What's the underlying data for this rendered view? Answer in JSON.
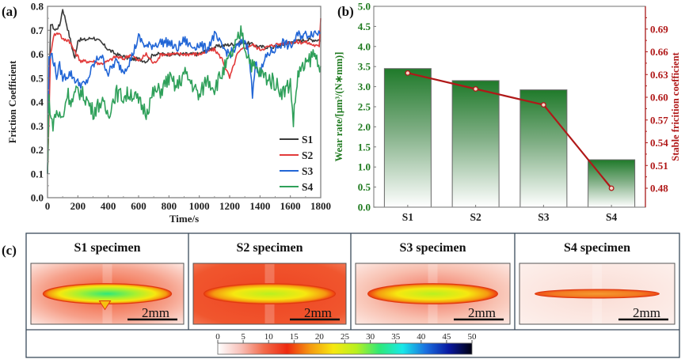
{
  "panel_labels": {
    "a": "(a)",
    "b": "(b)",
    "c": "(c)"
  },
  "colors": {
    "S1": "#3a3a3a",
    "S2": "#e23a3a",
    "S3": "#2266d6",
    "S4": "#2fa05a",
    "bar_top": "#1f7a2a",
    "line_red": "#b01818",
    "axis_green": "#1f7a1f",
    "axis_red": "#b01818"
  },
  "chart_data": [
    {
      "id": "a",
      "type": "line",
      "title": "",
      "xlabel": "Time/s",
      "ylabel": "Friction Coefficient",
      "xlim": [
        0,
        1800
      ],
      "ylim": [
        0.0,
        0.8
      ],
      "xticks": [
        0,
        200,
        400,
        600,
        800,
        1000,
        1200,
        1400,
        1600,
        1800
      ],
      "yticks": [
        "0.0",
        "0.1",
        "0.2",
        "0.3",
        "0.4",
        "0.5",
        "0.6",
        "0.7",
        "0.8"
      ],
      "legend": {
        "position": "bottom-right",
        "entries": [
          "S1",
          "S2",
          "S3",
          "S4"
        ]
      },
      "series": [
        {
          "name": "S1",
          "x": [
            0,
            20,
            50,
            80,
            100,
            120,
            150,
            180,
            200,
            250,
            300,
            350,
            400,
            450,
            500,
            550,
            600,
            650,
            700,
            800,
            900,
            1000,
            1100,
            1200,
            1300,
            1400,
            1500,
            1600,
            1700,
            1800
          ],
          "y": [
            0.1,
            0.73,
            0.7,
            0.72,
            0.79,
            0.74,
            0.66,
            0.58,
            0.66,
            0.66,
            0.67,
            0.65,
            0.62,
            0.6,
            0.59,
            0.58,
            0.58,
            0.57,
            0.6,
            0.6,
            0.6,
            0.6,
            0.63,
            0.64,
            0.65,
            0.63,
            0.63,
            0.65,
            0.66,
            0.66
          ]
        },
        {
          "name": "S2",
          "x": [
            0,
            20,
            40,
            80,
            100,
            140,
            180,
            220,
            260,
            300,
            350,
            400,
            450,
            500,
            550,
            600,
            650,
            700,
            750,
            800,
            900,
            1000,
            1100,
            1150,
            1200,
            1250,
            1300,
            1350,
            1400,
            1500,
            1600,
            1700,
            1790,
            1800
          ],
          "y": [
            0.1,
            0.6,
            0.68,
            0.69,
            0.66,
            0.66,
            0.61,
            0.57,
            0.57,
            0.57,
            0.56,
            0.57,
            0.59,
            0.58,
            0.6,
            0.57,
            0.6,
            0.56,
            0.6,
            0.6,
            0.6,
            0.6,
            0.62,
            0.58,
            0.5,
            0.6,
            0.63,
            0.64,
            0.62,
            0.64,
            0.65,
            0.65,
            0.63,
            0.75
          ]
        },
        {
          "name": "S3",
          "x": [
            0,
            10,
            30,
            60,
            80,
            100,
            150,
            200,
            250,
            300,
            350,
            400,
            450,
            500,
            550,
            600,
            650,
            700,
            750,
            800,
            850,
            900,
            950,
            1000,
            1050,
            1100,
            1150,
            1200,
            1250,
            1300,
            1330,
            1350,
            1370,
            1400,
            1450,
            1500,
            1550,
            1600,
            1650,
            1700,
            1750,
            1800
          ],
          "y": [
            0.1,
            0.58,
            0.6,
            0.51,
            0.55,
            0.5,
            0.52,
            0.48,
            0.47,
            0.55,
            0.6,
            0.52,
            0.57,
            0.53,
            0.58,
            0.67,
            0.63,
            0.64,
            0.65,
            0.65,
            0.62,
            0.66,
            0.63,
            0.64,
            0.62,
            0.68,
            0.63,
            0.6,
            0.63,
            0.66,
            0.6,
            0.42,
            0.56,
            0.52,
            0.6,
            0.62,
            0.65,
            0.63,
            0.68,
            0.68,
            0.69,
            0.69
          ]
        },
        {
          "name": "S4",
          "x": [
            0,
            10,
            30,
            60,
            80,
            100,
            130,
            160,
            200,
            250,
            300,
            350,
            400,
            450,
            500,
            550,
            600,
            650,
            700,
            750,
            800,
            850,
            900,
            950,
            1000,
            1050,
            1100,
            1150,
            1200,
            1250,
            1280,
            1300,
            1350,
            1400,
            1450,
            1500,
            1550,
            1600,
            1620,
            1650,
            1700,
            1750,
            1780,
            1800
          ],
          "y": [
            0.1,
            0.42,
            0.3,
            0.36,
            0.34,
            0.33,
            0.44,
            0.4,
            0.45,
            0.42,
            0.36,
            0.4,
            0.35,
            0.44,
            0.42,
            0.44,
            0.4,
            0.36,
            0.44,
            0.45,
            0.5,
            0.46,
            0.52,
            0.48,
            0.42,
            0.5,
            0.46,
            0.52,
            0.58,
            0.65,
            0.7,
            0.63,
            0.55,
            0.52,
            0.5,
            0.48,
            0.44,
            0.48,
            0.32,
            0.52,
            0.55,
            0.6,
            0.58,
            0.55
          ]
        }
      ]
    },
    {
      "id": "b",
      "type": "bar",
      "title": "",
      "xlabel": "",
      "categories": [
        "S1",
        "S2",
        "S3",
        "S4"
      ],
      "series": [
        {
          "name": "Wear rate",
          "axis": "left",
          "type": "bar",
          "values": [
            3.45,
            3.15,
            2.92,
            1.18
          ]
        },
        {
          "name": "Stable friction coefficient",
          "axis": "right",
          "type": "line",
          "values": [
            0.632,
            0.611,
            0.59,
            0.48
          ]
        }
      ],
      "ylabel_left": "Wear rate/[μm³/(N∗mm)]",
      "ylabel_right": "Stable fricition coefficient",
      "ylim_left": [
        0.0,
        5.0
      ],
      "ylim_right": [
        0.455,
        0.72
      ],
      "yticks_left": [
        "0.0",
        "0.5",
        "1.0",
        "1.5",
        "2.0",
        "2.5",
        "3.0",
        "3.5",
        "4.0",
        "4.5",
        "5.0"
      ],
      "yticks_right": [
        "0.48",
        "0.51",
        "0.54",
        "0.57",
        "0.60",
        "0.63",
        "0.66",
        "0.69"
      ]
    },
    {
      "id": "c",
      "type": "heatmap",
      "specimens": [
        {
          "title": "S1 specimen",
          "scale_bar": "2mm"
        },
        {
          "title": "S2 specimen",
          "scale_bar": "2mm"
        },
        {
          "title": "S3 specimen",
          "scale_bar": "2mm"
        },
        {
          "title": "S4 specimen",
          "scale_bar": "2mm"
        }
      ],
      "colorbar": {
        "ticks": [
          "0",
          "5",
          "10",
          "15",
          "20",
          "25",
          "30",
          "35",
          "40",
          "45",
          "50"
        ],
        "range": [
          0,
          50
        ],
        "stops": [
          "#ffffff",
          "#f8c0b8",
          "#f26a4a",
          "#ee2a10",
          "#f59a10",
          "#f6e810",
          "#b8f020",
          "#2ee878",
          "#18e8e8",
          "#1a70e0",
          "#0818a0",
          "#000010"
        ]
      }
    }
  ]
}
